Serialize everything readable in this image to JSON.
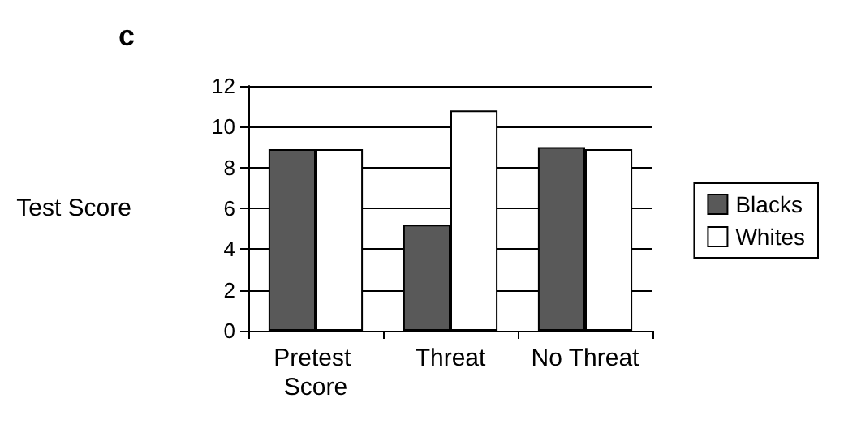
{
  "chart_data": {
    "type": "bar",
    "title": "c",
    "ylabel": "Test Score",
    "categories": [
      "Pretest Score",
      "Threat",
      "No Threat"
    ],
    "series": [
      {
        "name": "Blacks",
        "color": "#595959",
        "values": [
          8.9,
          5.2,
          9.0
        ]
      },
      {
        "name": "Whites",
        "color": "#ffffff",
        "values": [
          8.9,
          10.8,
          8.9
        ]
      }
    ],
    "ylim": [
      0,
      12
    ],
    "yticks": [
      0,
      2,
      4,
      6,
      8,
      10,
      12
    ],
    "grid": "y",
    "legend": "right"
  }
}
